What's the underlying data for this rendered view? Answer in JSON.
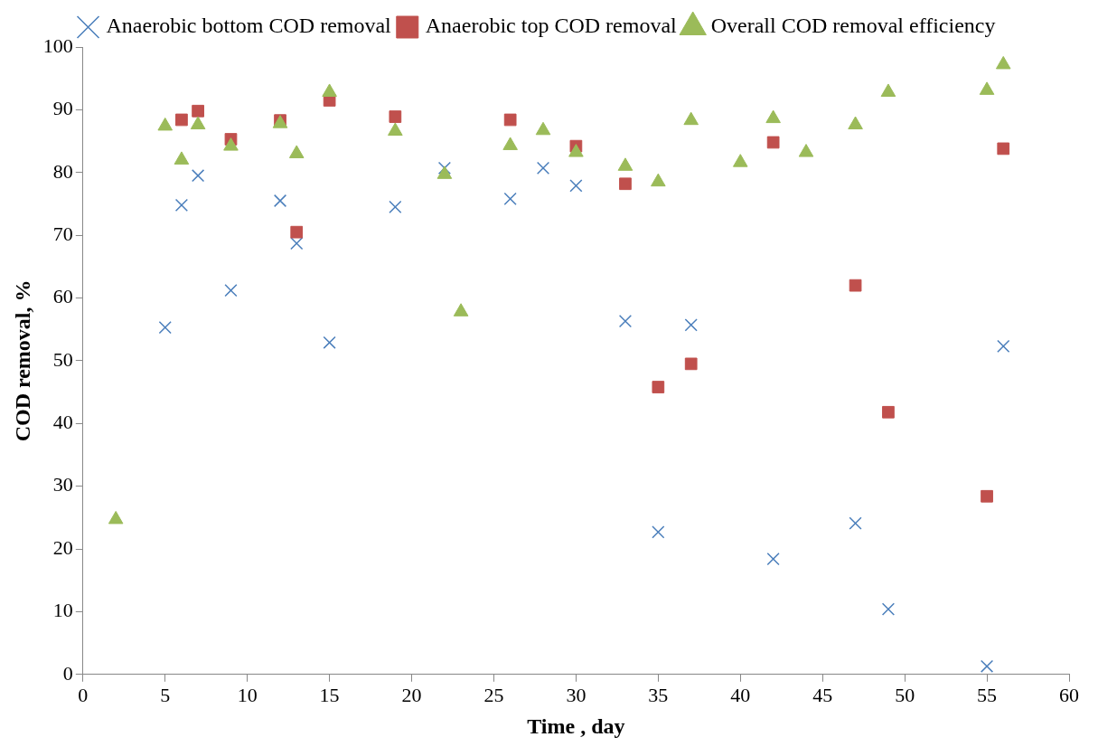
{
  "chart_data": {
    "type": "scatter",
    "xlabel": "Time , day",
    "ylabel": "COD removal, %",
    "xlim": [
      0,
      60
    ],
    "xticks": [
      0,
      5,
      10,
      15,
      20,
      25,
      30,
      35,
      40,
      45,
      50,
      55,
      60
    ],
    "ylim": [
      0,
      100
    ],
    "yticks": [
      0,
      10,
      20,
      30,
      40,
      50,
      60,
      70,
      80,
      90,
      100
    ],
    "grid": false,
    "legend": "top",
    "series": [
      {
        "name": "Anaerobic bottom COD removal",
        "color": "#4a7ebb",
        "marker": "cross",
        "x": [
          5,
          6,
          7,
          9,
          12,
          13,
          15,
          19,
          22,
          26,
          28,
          30,
          33,
          35,
          37,
          42,
          47,
          49,
          55,
          56
        ],
        "values": [
          55.3,
          74.8,
          79.5,
          61.2,
          75.5,
          68.7,
          52.9,
          74.5,
          80.7,
          75.8,
          80.7,
          77.9,
          56.3,
          22.7,
          55.7,
          18.4,
          24.1,
          10.4,
          1.3,
          52.3
        ]
      },
      {
        "name": "Anaerobic top COD removal",
        "color": "#c0504d",
        "marker": "square",
        "x": [
          6,
          7,
          9,
          12,
          13,
          15,
          19,
          26,
          30,
          33,
          35,
          37,
          42,
          47,
          49,
          55,
          56
        ],
        "values": [
          88.4,
          89.8,
          85.3,
          88.3,
          70.5,
          91.5,
          88.9,
          88.4,
          84.2,
          78.2,
          45.8,
          49.5,
          84.8,
          62.0,
          41.8,
          28.4,
          83.8
        ]
      },
      {
        "name": "Overall COD removal efficiency",
        "color": "#9bbb59",
        "marker": "triangle",
        "x": [
          2,
          5,
          6,
          7,
          9,
          12,
          13,
          15,
          19,
          22,
          23,
          26,
          28,
          30,
          33,
          35,
          37,
          40,
          42,
          44,
          47,
          49,
          55,
          56
        ],
        "values": [
          24.7,
          87.4,
          82.0,
          87.6,
          84.2,
          87.8,
          83.0,
          92.8,
          86.6,
          79.7,
          57.8,
          84.3,
          86.7,
          83.2,
          81.0,
          78.5,
          88.3,
          81.6,
          88.6,
          83.2,
          87.6,
          92.8,
          93.1,
          97.2
        ]
      }
    ]
  }
}
